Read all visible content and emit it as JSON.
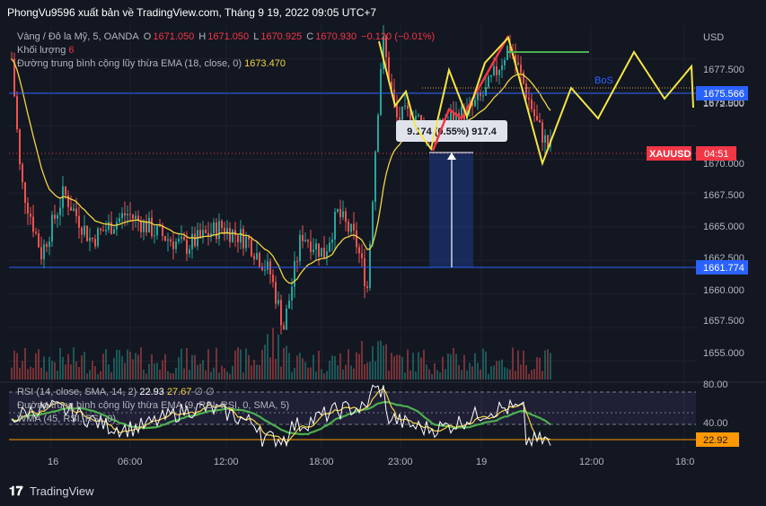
{
  "header": {
    "title": "PhongVu9596 xuất bản về TradingView.com, Tháng 9 19, 2022 09:05 UTC+7"
  },
  "legend": {
    "symbol": "Vàng / Đô la Mỹ, 5, OANDA",
    "o_label": "O",
    "o": "1671.050",
    "h_label": "H",
    "h": "1671.050",
    "l_label": "L",
    "l": "1670.925",
    "c_label": "C",
    "c": "1670.930",
    "change": "−0.120 (−0.01%)",
    "volume_label": "Khối lượng",
    "volume_value": "6",
    "ema_label": "Đường trung bình cộng lũy thừa EMA (18, close, 0)",
    "ema_value": "1673.470"
  },
  "rsi_legend": {
    "rsi_label": "RSI (14, close, SMA, 14, 2)",
    "rsi_value": "22.93",
    "rsi_ma": "27.67",
    "rsi_extra": "∅ ∅",
    "ema_rsi_label": "Đường trung bình cộng lũy thừa EMA (9, RSI, RSI, 0, SMA, 5)",
    "wma_label": "WMA (45, RSI, RSI, 0)"
  },
  "price_axis": {
    "currency": "USD",
    "ticks": [
      "1677.500",
      "1675.000",
      "1672.500",
      "1670.000",
      "1667.500",
      "1665.000",
      "1662.500",
      "1660.000",
      "1657.500",
      "1655.000"
    ],
    "level_high": "1675.566",
    "level_low": "1661.774",
    "symbol_tag": "XAUUSD",
    "countdown": "04:51"
  },
  "rsi_axis": {
    "ticks": [
      "80.00",
      "40.00"
    ],
    "current": "22.92"
  },
  "time_axis": {
    "ticks": [
      "16",
      "06:00",
      "12:00",
      "18:00",
      "23:00",
      "19",
      "12:00",
      "18:0"
    ]
  },
  "annotations": {
    "bos": "BoS",
    "measure": "9.174 (0.55%) 917.4"
  },
  "footer": {
    "brand": "TradingView"
  },
  "colors": {
    "background": "#131722",
    "up": "#26a69a",
    "down": "#ef5350",
    "ema": "#f5d442",
    "level": "#2962ff",
    "rsi": "#ffffff",
    "rsi_ma": "#f5d442",
    "rsi_wma": "#4caf50",
    "current_price": "#f23645"
  },
  "chart_data": {
    "type": "candlestick",
    "symbol": "XAUUSD",
    "timeframe": "5",
    "ylim": [
      1653.5,
      1680.0
    ],
    "levels": [
      1675.566,
      1661.774
    ],
    "last_price": 1670.93,
    "ema_last": 1673.47,
    "segments": [
      {
        "time": "16",
        "close": 1664.5
      },
      {
        "time": "06:00",
        "close": 1665.5
      },
      {
        "time": "12:00",
        "close": 1664.5
      },
      {
        "time": "18:00",
        "close": 1660.5
      },
      {
        "time": "23:00",
        "close": 1673.5
      },
      {
        "time": "19",
        "close": 1677.5
      }
    ],
    "rsi": {
      "value": 22.93,
      "ma": 27.67,
      "ylim": [
        20,
        85
      ],
      "bands": [
        80,
        40,
        30
      ]
    }
  }
}
